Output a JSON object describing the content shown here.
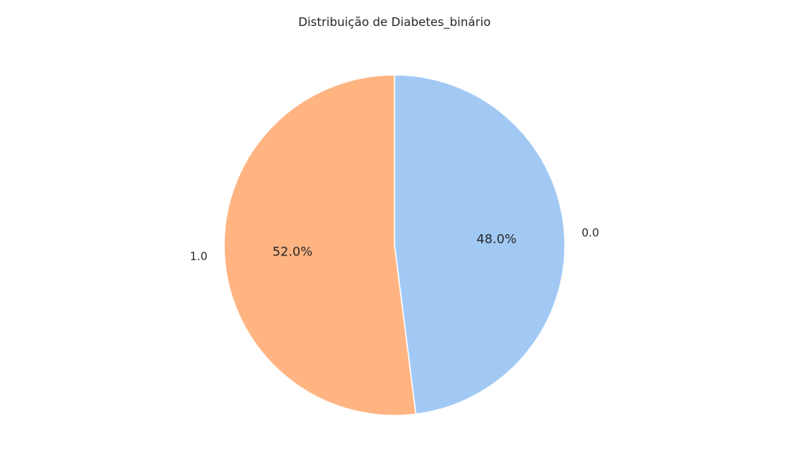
{
  "chart_data": {
    "type": "pie",
    "title": "Distribuição de Diabetes_binário",
    "slices": [
      {
        "label": "0.0",
        "value": 48.0,
        "pct_label": "48.0%",
        "color": "#a1c9f4"
      },
      {
        "label": "1.0",
        "value": 52.0,
        "pct_label": "52.0%",
        "color": "#ffb482"
      }
    ],
    "start_angle_deg": 90,
    "direction": "clockwise",
    "legend": "none"
  }
}
